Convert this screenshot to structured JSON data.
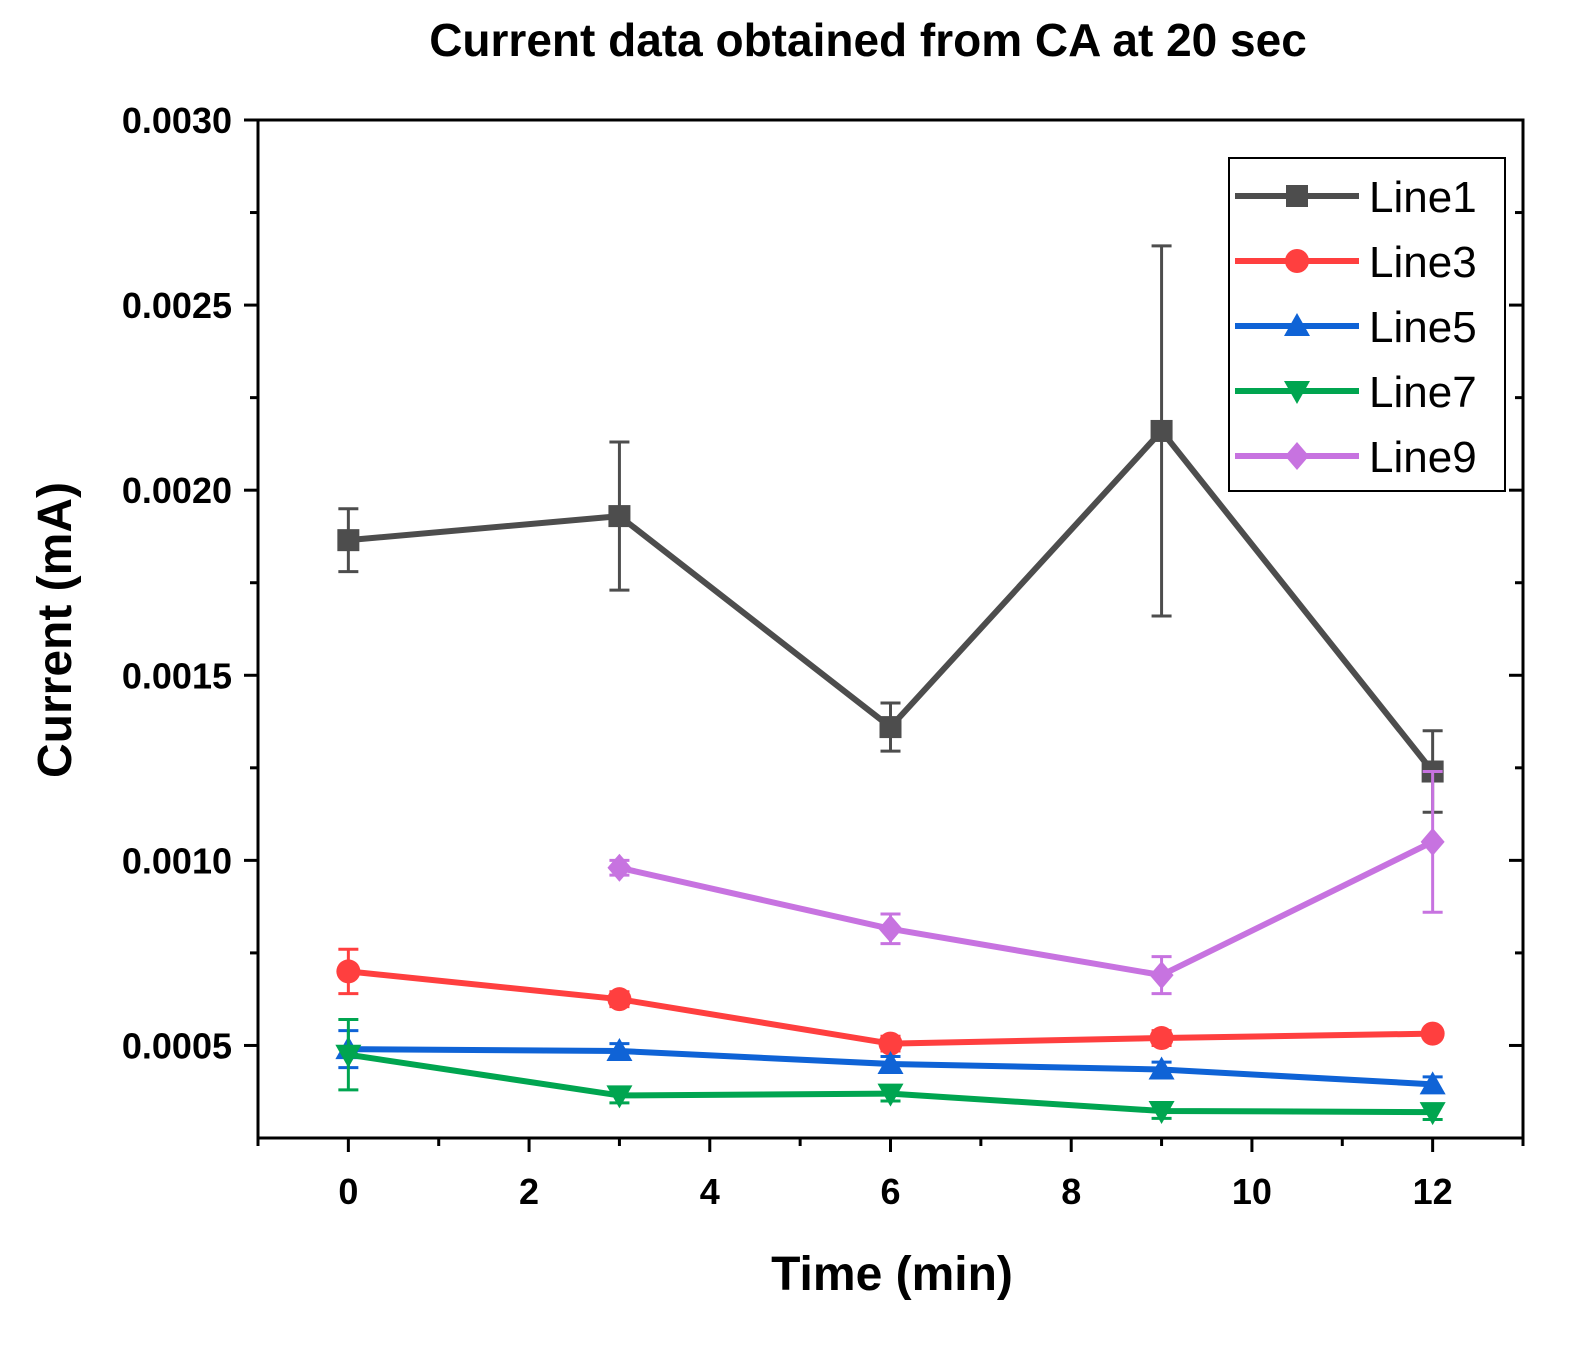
{
  "chart_data": {
    "type": "line",
    "title": "Current data obtained from CA at 20 sec",
    "xlabel": "Time (min)",
    "ylabel": "Current (mA)",
    "xlim": [
      -1,
      13
    ],
    "ylim": [
      0.00025,
      0.003
    ],
    "xticks": [
      0,
      2,
      4,
      6,
      8,
      10,
      12
    ],
    "xtick_labels": [
      "0",
      "2",
      "4",
      "6",
      "8",
      "10",
      "12"
    ],
    "yticks": [
      0.0005,
      0.001,
      0.0015,
      0.002,
      0.0025,
      0.003
    ],
    "ytick_labels": [
      "0.0005",
      "0.0010",
      "0.0015",
      "0.0020",
      "0.0025",
      "0.0030"
    ],
    "legend_position": "top-right",
    "grid": false,
    "series": [
      {
        "name": "Line1",
        "color": "#4d4d4d",
        "marker": "square",
        "x": [
          0,
          3,
          6,
          9,
          12
        ],
        "y": [
          0.001865,
          0.00193,
          0.00136,
          0.00216,
          0.00124
        ],
        "err": [
          8.5e-05,
          0.0002,
          6.5e-05,
          0.0005,
          0.00011
        ]
      },
      {
        "name": "Line3",
        "color": "#ff3f3f",
        "marker": "circle",
        "x": [
          0,
          3,
          6,
          9,
          12
        ],
        "y": [
          0.0007,
          0.000625,
          0.000505,
          0.00052,
          0.000532
        ],
        "err": [
          6e-05,
          2e-05,
          2e-05,
          2e-05,
          1e-05
        ]
      },
      {
        "name": "Line5",
        "color": "#0f63d6",
        "marker": "triangle-up",
        "x": [
          0,
          3,
          6,
          9,
          12
        ],
        "y": [
          0.00049,
          0.000485,
          0.00045,
          0.000435,
          0.000395
        ],
        "err": [
          5e-05,
          2e-05,
          2e-05,
          2e-05,
          2e-05
        ]
      },
      {
        "name": "Line7",
        "color": "#00a550",
        "marker": "triangle-down",
        "x": [
          0,
          3,
          6,
          9,
          12
        ],
        "y": [
          0.000475,
          0.000365,
          0.00037,
          0.000323,
          0.00032
        ],
        "err": [
          9.5e-05,
          2e-05,
          2e-05,
          2e-05,
          2e-05
        ]
      },
      {
        "name": "Line9",
        "color": "#c773e0",
        "marker": "diamond",
        "x": [
          3,
          6,
          9,
          12
        ],
        "y": [
          0.00098,
          0.000815,
          0.00069,
          0.00105
        ],
        "err": [
          2e-05,
          4e-05,
          5e-05,
          0.00019
        ]
      }
    ]
  }
}
